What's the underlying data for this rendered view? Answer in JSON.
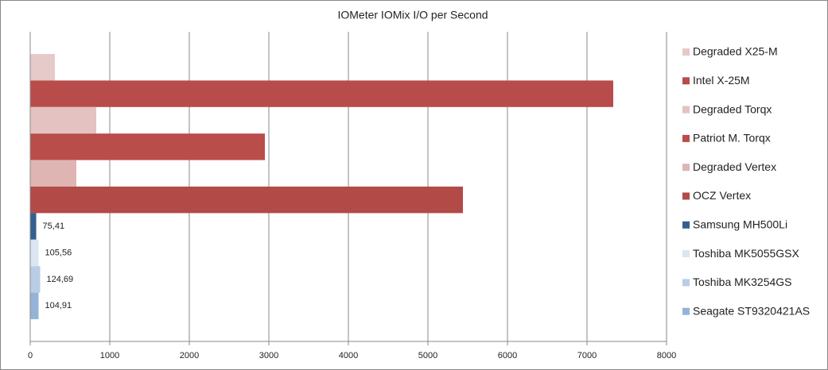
{
  "chart_data": {
    "type": "hbar",
    "title": "IOMeter IOMix I/O per Second",
    "series": [
      {
        "name": "Degraded X25-M",
        "color": "#e6c9c9",
        "values": [
          310
        ]
      },
      {
        "name": "Intel X-25M",
        "color": "#b84c4a",
        "values": [
          7330
        ]
      },
      {
        "name": "Degraded Torqx",
        "color": "#e3c2c1",
        "values": [
          830
        ]
      },
      {
        "name": "Patriot M. Torqx",
        "color": "#b94d4a",
        "values": [
          2950
        ]
      },
      {
        "name": "Degraded Vertex",
        "color": "#dfb5b3",
        "values": [
          580
        ]
      },
      {
        "name": "OCZ Vertex",
        "color": "#b24a47",
        "values": [
          5440
        ]
      },
      {
        "name": "Samsung MH500Li",
        "color": "#365f91",
        "values": [
          75.41
        ],
        "value_labels": [
          "75,41"
        ]
      },
      {
        "name": "Toshiba MK5055GSX",
        "color": "#dce6f2",
        "values": [
          105.56
        ],
        "value_labels": [
          "105,56"
        ]
      },
      {
        "name": "Toshiba MK3254GS",
        "color": "#b9cde5",
        "values": [
          124.69
        ],
        "value_labels": [
          "124,69"
        ]
      },
      {
        "name": "Seagate ST9320421AS",
        "color": "#95b3d7",
        "values": [
          104.91
        ],
        "value_labels": [
          "104,91"
        ]
      }
    ],
    "xlim": [
      0,
      8000
    ],
    "xticks": [
      0,
      1000,
      2000,
      3000,
      4000,
      5000,
      6000,
      7000,
      8000
    ],
    "grid": true,
    "legend": "right"
  }
}
